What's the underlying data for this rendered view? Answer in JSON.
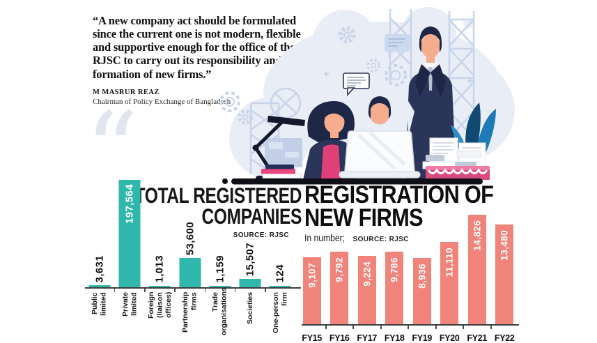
{
  "quote": {
    "mark": "“",
    "text": "“A new company act should be formulated since the current one is not modern, flexible and supportive enough for the office of the RJSC to carry out its responsibility and the formation of new firms.”",
    "author": "M MASRUR REAZ",
    "author_title": "Chairman of Policy Exchange of Bangladesh"
  },
  "colors": {
    "teal_bar": "#2eb7aa",
    "salmon_bar": "#f0837a",
    "axis": "#3e3e3e",
    "text_dark": "#111111",
    "illustration_bg": "#e9edf6",
    "illustration_line": "#c7d4ea",
    "navy": "#2b3559",
    "pink": "#e8497e",
    "skin": "#f6ad8d"
  },
  "chart_data": [
    {
      "type": "bar",
      "title": "TOTAL REGISTERED COMPANIES",
      "title_lines": [
        "TOTAL REGISTERED",
        "COMPANIES"
      ],
      "source_label": "SOURCE: RJSC",
      "categories": [
        "Public\nlimited",
        "Private\nlimited",
        "Foreign\n(liaison offices)",
        "Partnership\nfirms",
        "Trade\norganisations",
        "Societies",
        "One-person\nfirm"
      ],
      "values": [
        3631,
        197564,
        1013,
        53600,
        1159,
        15507,
        124
      ],
      "value_labels": [
        "3,631",
        "197,564",
        "1,013",
        "53,600",
        "1,159",
        "15,507",
        "124"
      ],
      "bar_color": "#2eb7aa",
      "ylim": [
        0,
        200000
      ],
      "grid": false,
      "value_label_rotation": "vertical",
      "legend": "none"
    },
    {
      "type": "bar",
      "title": "REGISTRATION OF NEW FIRMS",
      "title_lines": [
        "REGISTRATION OF",
        "NEW FIRMS"
      ],
      "subtitle": "In number;",
      "source_label": "SOURCE: RJSC",
      "categories": [
        "FY15",
        "FY16",
        "FY17",
        "FY18",
        "FY19",
        "FY20",
        "FY21",
        "FY22"
      ],
      "values": [
        9107,
        9792,
        9224,
        9786,
        8936,
        11110,
        14826,
        13480
      ],
      "value_labels": [
        "9,107",
        "9,792",
        "9,224",
        "9,786",
        "8,936",
        "11,110",
        "14,826",
        "13,480"
      ],
      "bar_color": "#f0837a",
      "ylim": [
        0,
        15500
      ],
      "grid": false,
      "value_label_rotation": "vertical",
      "legend": "none"
    }
  ]
}
